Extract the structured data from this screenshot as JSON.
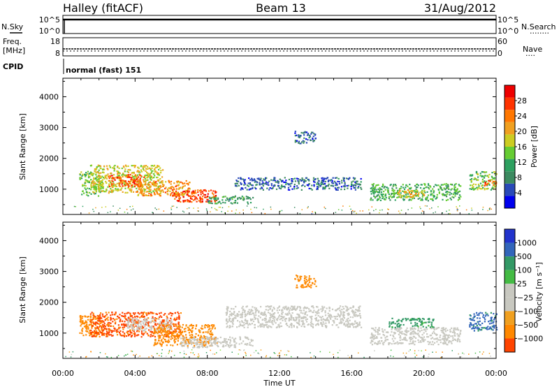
{
  "header": {
    "site": "Halley (fitACF)",
    "beam": "Beam 13",
    "date": "31/Aug/2012"
  },
  "summary_panels": {
    "nsky": {
      "label": "N.Sky",
      "ticks": [
        "10^5",
        "10^0"
      ],
      "right_ticks": [
        "10^5",
        "10^0"
      ],
      "right_label": "N.Search",
      "right_dots": "........"
    },
    "freq": {
      "label_line1": "Freq.",
      "label_line2": "[MHz]",
      "ticks": [
        "18",
        "8"
      ],
      "right_ticks": [
        "60",
        "0"
      ],
      "right_label": "Nave",
      "right_dots": "...."
    },
    "cpid": {
      "label": "CPID",
      "mode": "normal (fast) 151"
    }
  },
  "colors": {
    "power_scale": [
      "#0000ee",
      "#2a4ab8",
      "#3c8a60",
      "#2ea060",
      "#66cc33",
      "#cccc22",
      "#f0a020",
      "#ff7700",
      "#ff3300",
      "#ee0000"
    ],
    "velocity_scale": [
      "#2233cc",
      "#3366bb",
      "#339966",
      "#44bb44",
      "#88dd44",
      "#c8c8c0",
      "#c8c8c0",
      "#f0a020",
      "#ff8800",
      "#ff4400",
      "#ee0000"
    ],
    "gray": "#c8c8c0"
  },
  "chart_data": [
    {
      "type": "heatmap",
      "name": "power",
      "xlabel": "",
      "ylabel": "Slant Range [km]",
      "xlim": [
        0,
        24
      ],
      "ylim": [
        180,
        4600
      ],
      "yticks": [
        1000,
        2000,
        3000,
        4000
      ],
      "colorbar": {
        "label": "Power [dB]",
        "range": [
          0,
          32
        ],
        "ticks": [
          "4",
          "8",
          "12",
          "16",
          "20",
          "24",
          "28"
        ]
      },
      "regions": [
        {
          "t0": 0.9,
          "t1": 2.2,
          "r0": 800,
          "r1": 1600,
          "value": 14
        },
        {
          "t0": 1.5,
          "t1": 5.5,
          "r0": 900,
          "r1": 1800,
          "value": 18
        },
        {
          "t0": 2.5,
          "t1": 4.5,
          "r0": 1100,
          "r1": 1500,
          "value": 26
        },
        {
          "t0": 4.0,
          "t1": 7.0,
          "r0": 800,
          "r1": 1300,
          "value": 22
        },
        {
          "t0": 6.0,
          "t1": 8.5,
          "r0": 600,
          "r1": 1000,
          "value": 27
        },
        {
          "t0": 8.0,
          "t1": 10.5,
          "r0": 550,
          "r1": 800,
          "value": 10
        },
        {
          "t0": 9.5,
          "t1": 16.5,
          "r0": 1000,
          "r1": 1400,
          "value": 6
        },
        {
          "t0": 12.8,
          "t1": 14.0,
          "r0": 2500,
          "r1": 2900,
          "value": 6
        },
        {
          "t0": 17.0,
          "t1": 22.0,
          "r0": 650,
          "r1": 1200,
          "value": 12
        },
        {
          "t0": 18.5,
          "t1": 20.0,
          "r0": 750,
          "r1": 1000,
          "value": 20
        },
        {
          "t0": 22.5,
          "t1": 24.0,
          "r0": 1000,
          "r1": 1600,
          "value": 14
        },
        {
          "t0": 23.2,
          "t1": 24.0,
          "r0": 1100,
          "r1": 1300,
          "value": 26
        }
      ]
    },
    {
      "type": "heatmap",
      "name": "velocity",
      "xlabel": "Time UT",
      "ylabel": "Slant Range [km]",
      "xlim": [
        0,
        24
      ],
      "ylim": [
        180,
        4600
      ],
      "xticks": [
        "00:00",
        "04:00",
        "08:00",
        "12:00",
        "16:00",
        "20:00",
        "00:00"
      ],
      "yticks": [
        1000,
        2000,
        3000,
        4000
      ],
      "colorbar": {
        "label": "Velocity [m s⁻¹]",
        "ticks": [
          "1000",
          "500",
          "100",
          "25",
          "−25",
          "−100",
          "−500",
          "−1000"
        ]
      },
      "regions": [
        {
          "t0": 0.9,
          "t1": 2.5,
          "r0": 900,
          "r1": 1600,
          "value": -200
        },
        {
          "t0": 1.5,
          "t1": 6.5,
          "r0": 900,
          "r1": 1700,
          "value": -400
        },
        {
          "t0": 3.5,
          "t1": 6.0,
          "r0": 1100,
          "r1": 1500,
          "value": 0
        },
        {
          "t0": 5.0,
          "t1": 8.5,
          "r0": 600,
          "r1": 1300,
          "value": -150
        },
        {
          "t0": 6.5,
          "t1": 10.5,
          "r0": 550,
          "r1": 900,
          "value": 0
        },
        {
          "t0": 9.0,
          "t1": 16.5,
          "r0": 1200,
          "r1": 1900,
          "value": 0
        },
        {
          "t0": 12.8,
          "t1": 14.0,
          "r0": 2500,
          "r1": 2900,
          "value": -150
        },
        {
          "t0": 17.0,
          "t1": 22.0,
          "r0": 650,
          "r1": 1200,
          "value": 0
        },
        {
          "t0": 18.0,
          "t1": 20.5,
          "r0": 1200,
          "r1": 1500,
          "value": 150
        },
        {
          "t0": 22.5,
          "t1": 24.0,
          "r0": 1100,
          "r1": 1700,
          "value": 400
        }
      ]
    }
  ]
}
